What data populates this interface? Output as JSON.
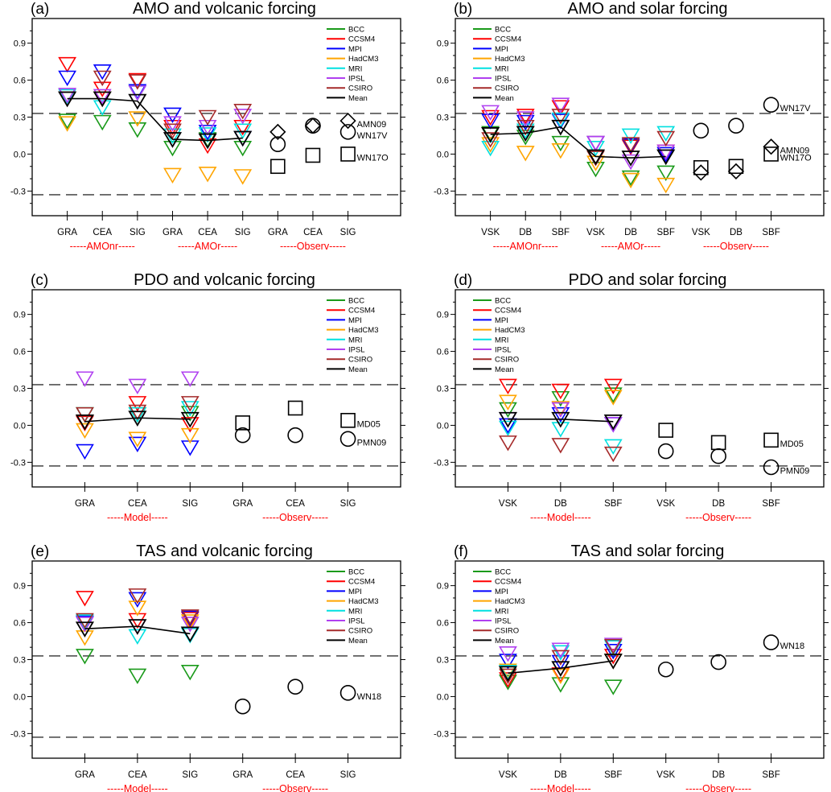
{
  "legend_order": [
    "BCC",
    "CCSM4",
    "MPI",
    "HadCM3",
    "MRI",
    "IPSL",
    "CSIRO",
    "Mean"
  ],
  "colors": {
    "BCC": "#1a9a1a",
    "CCSM4": "#ff0000",
    "MPI": "#0000ff",
    "HadCM3": "#ffa500",
    "MRI": "#00e0e0",
    "IPSL": "#b040f0",
    "CSIRO": "#a52a2a",
    "Mean": "#000000"
  },
  "chart_data": [
    {
      "panel_label": "(a)",
      "title": "AMO and volcanic forcing",
      "type": "scatter",
      "categories": [
        "GRA",
        "CEA",
        "SIG",
        "GRA",
        "CEA",
        "SIG",
        "GRA",
        "CEA",
        "SIG"
      ],
      "model_count": 6,
      "groups": [
        {
          "label": "-----AMOnr-----",
          "from": 1,
          "to": 3
        },
        {
          "label": "-----AMOr-----",
          "from": 4,
          "to": 6
        },
        {
          "label": "-----Observ-----",
          "from": 7,
          "to": 9
        }
      ],
      "ylim": [
        -0.5,
        1.1
      ],
      "yticks": [
        -0.3,
        0.0,
        0.3,
        0.6,
        0.9
      ],
      "ytick_labels": [
        "-0.3",
        "0.0",
        "0.3",
        "0.6",
        "0.9"
      ],
      "reference_lines": [
        0.33,
        -0.33
      ],
      "legend": "top-right",
      "series": [
        {
          "name": "BCC",
          "values": [
            0.27,
            0.26,
            0.2,
            0.05,
            0.12,
            0.05
          ]
        },
        {
          "name": "CCSM4",
          "values": [
            0.73,
            0.53,
            0.6,
            0.22,
            0.07,
            0.22
          ]
        },
        {
          "name": "MPI",
          "values": [
            0.62,
            0.67,
            0.51,
            0.32,
            0.18,
            0.13
          ]
        },
        {
          "name": "HadCM3",
          "values": [
            0.25,
            0.45,
            0.29,
            -0.17,
            -0.16,
            -0.18
          ]
        },
        {
          "name": "MRI",
          "values": [
            0.47,
            0.38,
            0.5,
            0.15,
            0.16,
            0.19
          ]
        },
        {
          "name": "IPSL",
          "values": [
            0.48,
            0.47,
            0.5,
            0.25,
            0.22,
            0.31
          ]
        },
        {
          "name": "CSIRO",
          "values": [
            0.45,
            0.62,
            0.59,
            0.19,
            0.3,
            0.35
          ]
        },
        {
          "name": "Mean",
          "values": [
            0.45,
            0.45,
            0.43,
            0.12,
            0.11,
            0.13
          ]
        }
      ],
      "observations": [
        {
          "name": "AMN09",
          "marker": "diamond",
          "values": [
            0.18,
            0.23,
            0.27
          ]
        },
        {
          "name": "WN17V",
          "marker": "circle",
          "values": [
            0.08,
            0.23,
            0.18
          ]
        },
        {
          "name": "WN17O",
          "marker": "square",
          "values": [
            -0.1,
            -0.01,
            0.0
          ]
        }
      ]
    },
    {
      "panel_label": "(b)",
      "title": "AMO and solar forcing",
      "type": "scatter",
      "categories": [
        "VSK",
        "DB",
        "SBF",
        "VSK",
        "DB",
        "SBF",
        "VSK",
        "DB",
        "SBF"
      ],
      "model_count": 6,
      "groups": [
        {
          "label": "-----AMOnr-----",
          "from": 1,
          "to": 3
        },
        {
          "label": "-----AMOr-----",
          "from": 4,
          "to": 6
        },
        {
          "label": "-----Observ-----",
          "from": 7,
          "to": 9
        }
      ],
      "ylim": [
        -0.5,
        1.1
      ],
      "yticks": [
        -0.3,
        0.0,
        0.3,
        0.6,
        0.9
      ],
      "ytick_labels": [
        "-0.3",
        "0.0",
        "0.3",
        "0.6",
        "0.9"
      ],
      "reference_lines": [
        0.33,
        -0.33
      ],
      "legend": "top-left",
      "series": [
        {
          "name": "BCC",
          "values": [
            0.17,
            0.14,
            0.09,
            -0.12,
            -0.19,
            -0.15
          ]
        },
        {
          "name": "CCSM4",
          "values": [
            0.3,
            0.31,
            0.38,
            0.09,
            0.06,
            0.02
          ]
        },
        {
          "name": "MPI",
          "values": [
            0.27,
            0.26,
            0.27,
            0.09,
            0.07,
            0.0
          ]
        },
        {
          "name": "HadCM3",
          "values": [
            0.08,
            0.01,
            0.03,
            -0.07,
            -0.21,
            -0.25
          ]
        },
        {
          "name": "MRI",
          "values": [
            0.05,
            0.19,
            0.28,
            0.05,
            0.15,
            0.17
          ]
        },
        {
          "name": "IPSL",
          "values": [
            0.34,
            0.29,
            0.4,
            0.09,
            -0.06,
            0.02
          ]
        },
        {
          "name": "CSIRO",
          "values": [
            0.12,
            0.22,
            0.31,
            -0.03,
            0.08,
            0.13
          ]
        },
        {
          "name": "Mean",
          "values": [
            0.16,
            0.17,
            0.22,
            -0.02,
            -0.03,
            -0.02
          ]
        }
      ],
      "observations": [
        {
          "name": "WN17V",
          "marker": "circle",
          "values": [
            0.19,
            0.23,
            0.4
          ]
        },
        {
          "name": "AMN09",
          "marker": "diamond",
          "values": [
            -0.15,
            -0.14,
            0.06
          ]
        },
        {
          "name": "WN17O",
          "marker": "square",
          "values": [
            -0.11,
            -0.1,
            0.0
          ]
        }
      ]
    },
    {
      "panel_label": "(c)",
      "title": "PDO and volcanic forcing",
      "type": "scatter",
      "categories": [
        "GRA",
        "CEA",
        "SIG",
        "GRA",
        "CEA",
        "SIG"
      ],
      "model_count": 3,
      "groups": [
        {
          "label": "-----Model-----",
          "from": 1,
          "to": 3
        },
        {
          "label": "-----Observ-----",
          "from": 4,
          "to": 6
        }
      ],
      "ylim": [
        -0.5,
        1.1
      ],
      "yticks": [
        -0.3,
        0.0,
        0.3,
        0.6,
        0.9
      ],
      "ytick_labels": [
        "-0.3",
        "0.0",
        "0.3",
        "0.6",
        "0.9"
      ],
      "reference_lines": [
        0.33,
        -0.33
      ],
      "legend": "top-right",
      "series": [
        {
          "name": "BCC",
          "values": [
            0.09,
            0.09,
            0.1
          ]
        },
        {
          "name": "CCSM4",
          "values": [
            0.02,
            0.18,
            0.01
          ]
        },
        {
          "name": "MPI",
          "values": [
            -0.21,
            -0.15,
            -0.18
          ]
        },
        {
          "name": "HadCM3",
          "values": [
            -0.04,
            -0.11,
            -0.08
          ]
        },
        {
          "name": "MRI",
          "values": [
            0.09,
            0.09,
            0.14
          ]
        },
        {
          "name": "IPSL",
          "values": [
            0.38,
            0.32,
            0.38
          ]
        },
        {
          "name": "CSIRO",
          "values": [
            0.09,
            0.11,
            0.18
          ]
        },
        {
          "name": "Mean",
          "values": [
            0.03,
            0.06,
            0.05
          ]
        }
      ],
      "observations": [
        {
          "name": "MD05",
          "marker": "square",
          "values": [
            0.02,
            0.14,
            0.04
          ]
        },
        {
          "name": "PMN09",
          "marker": "circle",
          "values": [
            -0.08,
            -0.08,
            -0.11
          ]
        }
      ]
    },
    {
      "panel_label": "(d)",
      "title": "PDO and solar forcing",
      "type": "scatter",
      "categories": [
        "VSK",
        "DB",
        "SBF",
        "VSK",
        "DB",
        "SBF"
      ],
      "model_count": 3,
      "groups": [
        {
          "label": "-----Model-----",
          "from": 1,
          "to": 3
        },
        {
          "label": "-----Observ-----",
          "from": 4,
          "to": 6
        }
      ],
      "ylim": [
        -0.5,
        1.1
      ],
      "yticks": [
        -0.3,
        0.0,
        0.3,
        0.6,
        0.9
      ],
      "ytick_labels": [
        "-0.3",
        "0.0",
        "0.3",
        "0.6",
        "0.9"
      ],
      "reference_lines": [
        0.33,
        -0.33
      ],
      "legend": "top-left",
      "series": [
        {
          "name": "BCC",
          "values": [
            0.13,
            0.22,
            0.25
          ]
        },
        {
          "name": "CCSM4",
          "values": [
            0.32,
            0.28,
            0.32
          ]
        },
        {
          "name": "MPI",
          "values": [
            0.0,
            0.09,
            0.01
          ]
        },
        {
          "name": "HadCM3",
          "values": [
            0.19,
            0.14,
            0.23
          ]
        },
        {
          "name": "MRI",
          "values": [
            -0.02,
            -0.03,
            -0.17
          ]
        },
        {
          "name": "IPSL",
          "values": [
            0.05,
            0.13,
            0.01
          ]
        },
        {
          "name": "CSIRO",
          "values": [
            -0.14,
            -0.16,
            -0.23
          ]
        },
        {
          "name": "Mean",
          "values": [
            0.05,
            0.05,
            0.03
          ]
        }
      ],
      "observations": [
        {
          "name": "MD05",
          "marker": "square",
          "values": [
            -0.04,
            -0.14,
            -0.12
          ]
        },
        {
          "name": "PMN09",
          "marker": "circle",
          "values": [
            -0.21,
            -0.25,
            -0.34
          ]
        }
      ]
    },
    {
      "panel_label": "(e)",
      "title": "TAS and volcanic forcing",
      "type": "scatter",
      "categories": [
        "GRA",
        "CEA",
        "SIG",
        "GRA",
        "CEA",
        "SIG"
      ],
      "model_count": 3,
      "groups": [
        {
          "label": "-----Model-----",
          "from": 1,
          "to": 3
        },
        {
          "label": "-----Observ-----",
          "from": 4,
          "to": 6
        }
      ],
      "ylim": [
        -0.5,
        1.1
      ],
      "yticks": [
        -0.3,
        0.0,
        0.3,
        0.6,
        0.9
      ],
      "ytick_labels": [
        "-0.3",
        "0.0",
        "0.3",
        "0.6",
        "0.9"
      ],
      "reference_lines": [
        0.33,
        -0.33
      ],
      "legend": "top-right",
      "series": [
        {
          "name": "BCC",
          "values": [
            0.33,
            0.17,
            0.2
          ]
        },
        {
          "name": "CCSM4",
          "values": [
            0.8,
            0.62,
            0.63
          ]
        },
        {
          "name": "MPI",
          "values": [
            0.6,
            0.79,
            0.64
          ]
        },
        {
          "name": "HadCM3",
          "values": [
            0.48,
            0.72,
            0.61
          ]
        },
        {
          "name": "MRI",
          "values": [
            0.61,
            0.49,
            0.5
          ]
        },
        {
          "name": "IPSL",
          "values": [
            0.59,
            0.57,
            0.59
          ]
        },
        {
          "name": "CSIRO",
          "values": [
            0.62,
            0.82,
            0.65
          ]
        },
        {
          "name": "Mean",
          "values": [
            0.55,
            0.57,
            0.51
          ]
        }
      ],
      "observations": [
        {
          "name": "WN18",
          "marker": "circle",
          "values": [
            -0.08,
            0.08,
            0.03
          ]
        }
      ]
    },
    {
      "panel_label": "(f)",
      "title": "TAS and solar forcing",
      "type": "scatter",
      "categories": [
        "VSK",
        "DB",
        "SBF",
        "VSK",
        "DB",
        "SBF"
      ],
      "model_count": 3,
      "groups": [
        {
          "label": "-----Model-----",
          "from": 1,
          "to": 3
        },
        {
          "label": "-----Observ-----",
          "from": 4,
          "to": 6
        }
      ],
      "ylim": [
        -0.5,
        1.1
      ],
      "yticks": [
        -0.3,
        0.0,
        0.3,
        0.6,
        0.9
      ],
      "ytick_labels": [
        "-0.3",
        "0.0",
        "0.3",
        "0.6",
        "0.9"
      ],
      "reference_lines": [
        0.33,
        -0.33
      ],
      "legend": "top-left",
      "series": [
        {
          "name": "BCC",
          "values": [
            0.12,
            0.1,
            0.08
          ]
        },
        {
          "name": "CCSM4",
          "values": [
            0.14,
            0.18,
            0.33
          ]
        },
        {
          "name": "MPI",
          "values": [
            0.29,
            0.28,
            0.37
          ]
        },
        {
          "name": "HadCM3",
          "values": [
            0.21,
            0.17,
            0.29
          ]
        },
        {
          "name": "MRI",
          "values": [
            0.2,
            0.36,
            0.4
          ]
        },
        {
          "name": "IPSL",
          "values": [
            0.35,
            0.38,
            0.42
          ]
        },
        {
          "name": "CSIRO",
          "values": [
            0.17,
            0.32,
            0.41
          ]
        },
        {
          "name": "Mean",
          "values": [
            0.19,
            0.23,
            0.29
          ]
        }
      ],
      "observations": [
        {
          "name": "WN18",
          "marker": "circle",
          "values": [
            0.22,
            0.28,
            0.44
          ]
        }
      ]
    }
  ]
}
